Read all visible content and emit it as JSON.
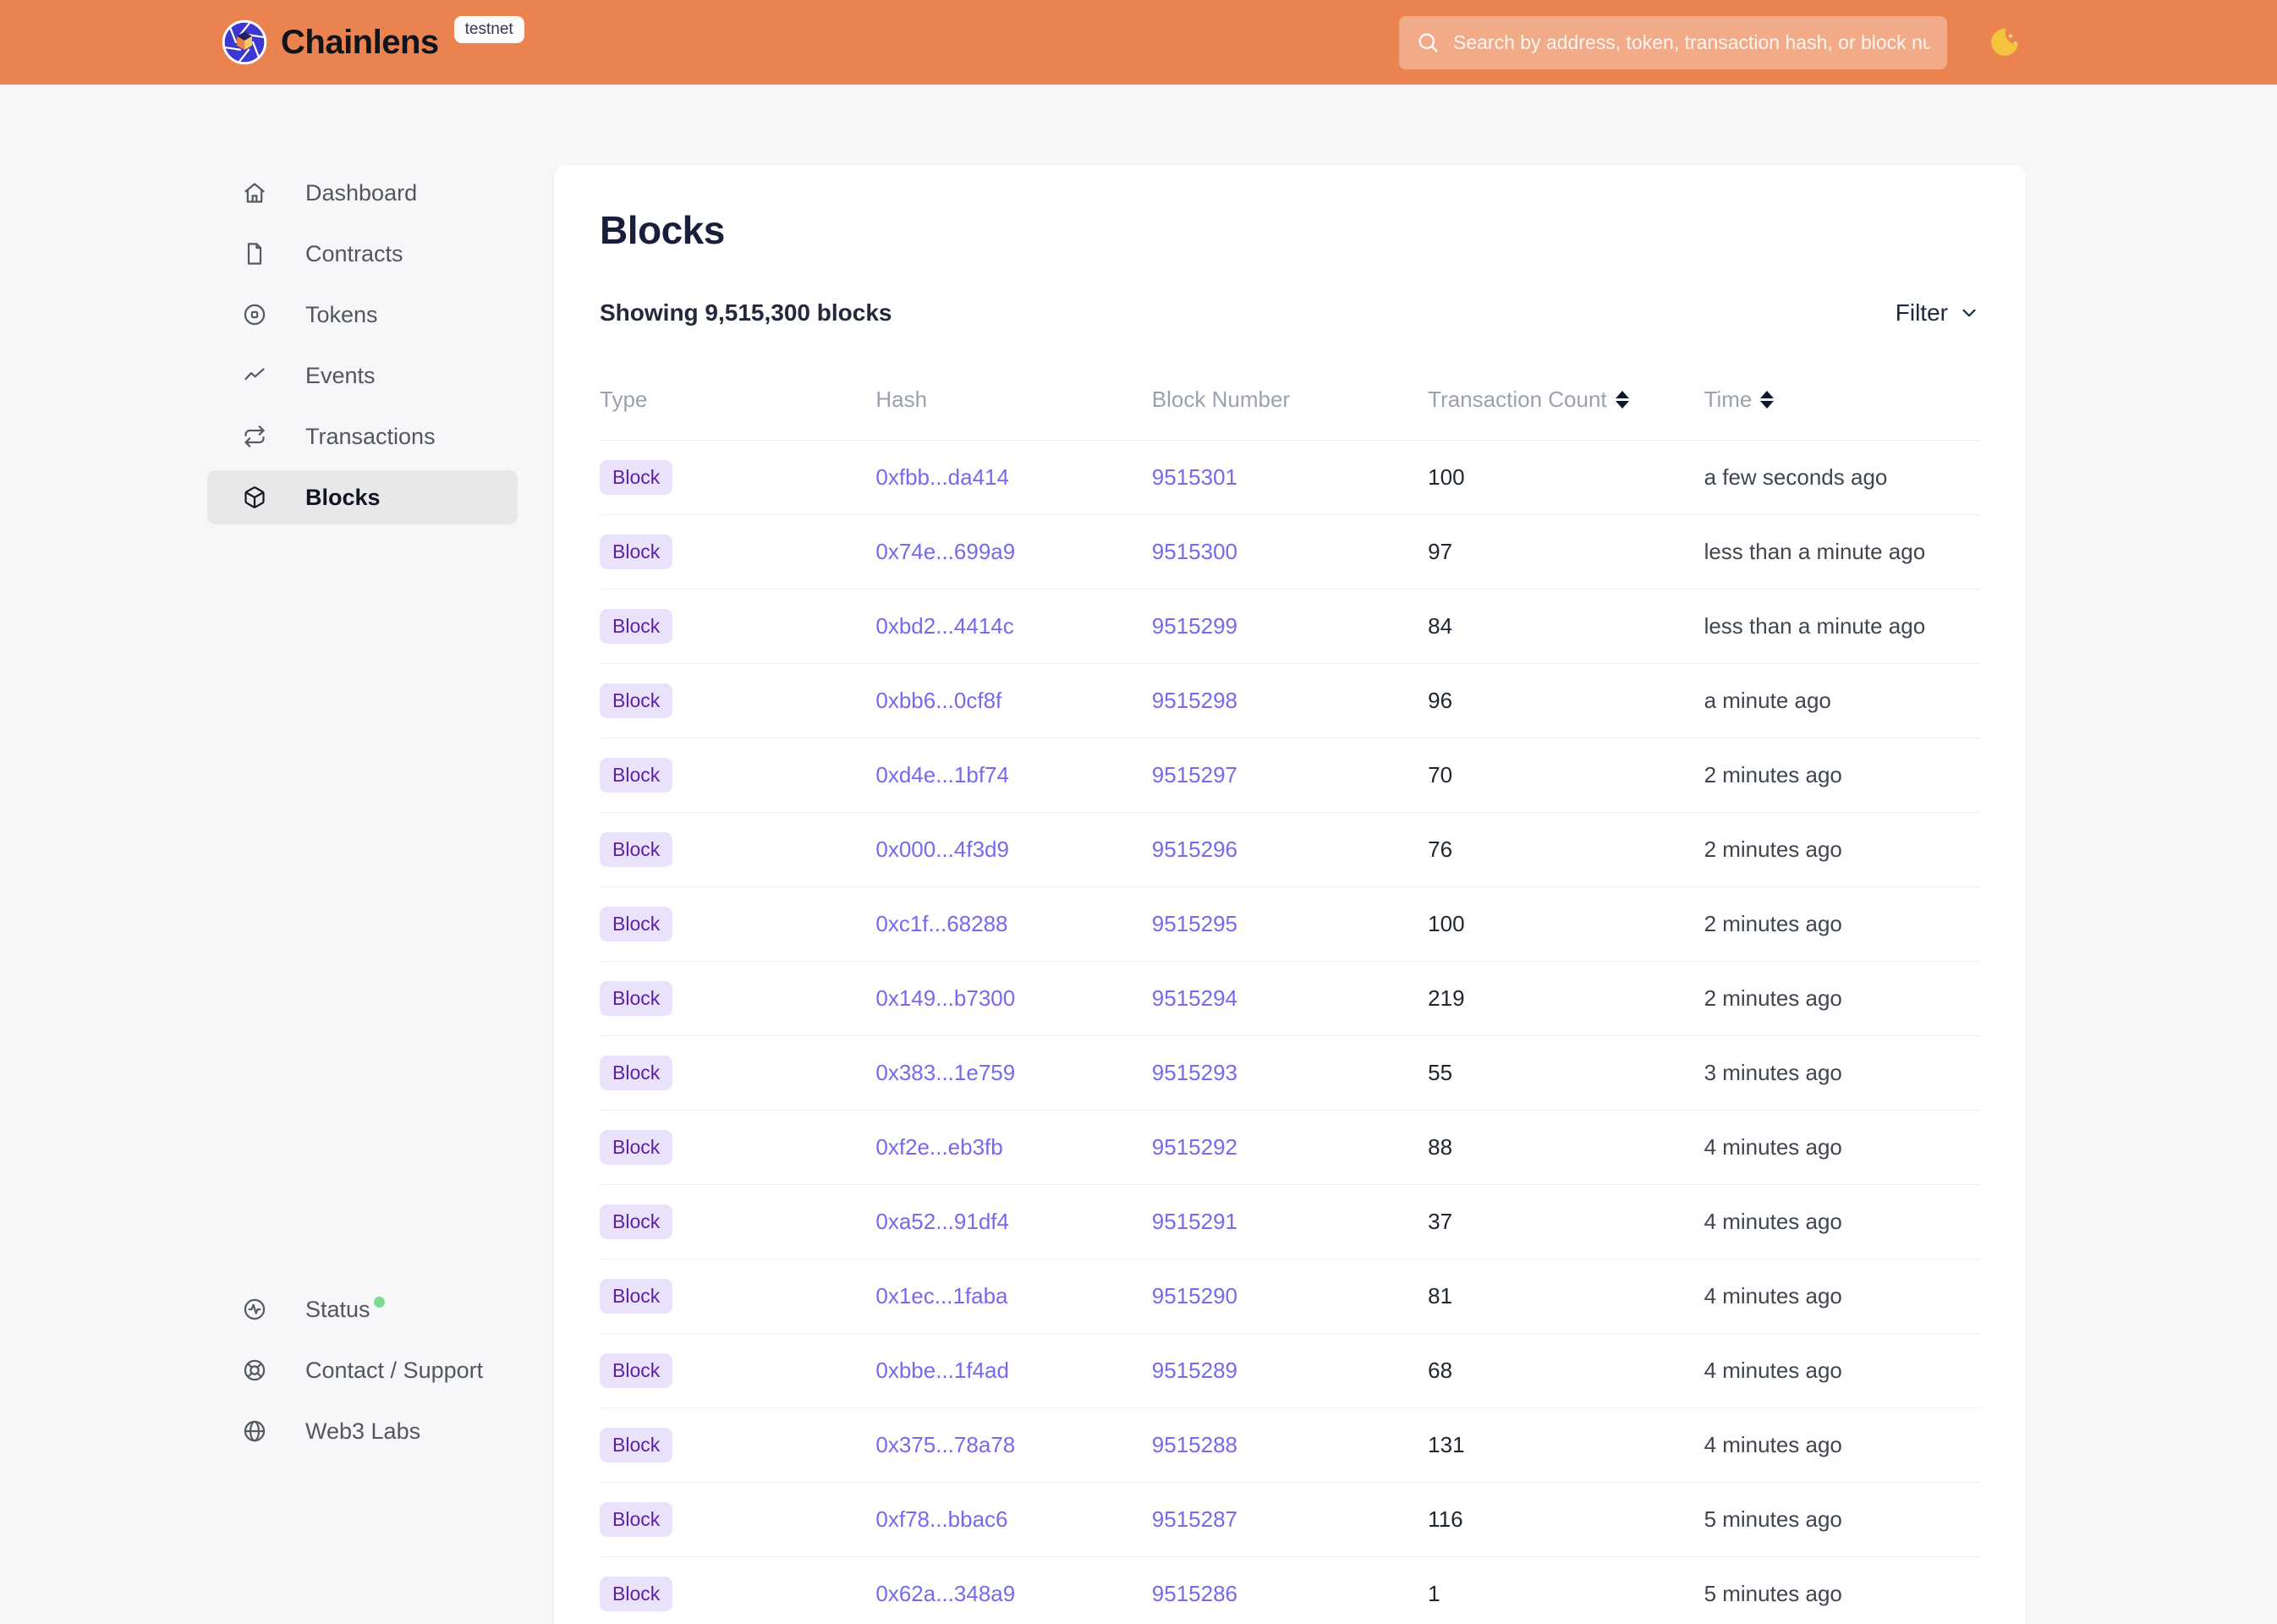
{
  "header": {
    "brand": "Chainlens",
    "network_badge": "testnet",
    "search_placeholder": "Search by address, token, transaction hash, or block number",
    "theme_icon": "moon-icon"
  },
  "sidebar": {
    "items": [
      {
        "key": "dashboard",
        "label": "Dashboard",
        "icon": "home-icon",
        "active": false
      },
      {
        "key": "contracts",
        "label": "Contracts",
        "icon": "file-icon",
        "active": false
      },
      {
        "key": "tokens",
        "label": "Tokens",
        "icon": "token-icon",
        "active": false
      },
      {
        "key": "events",
        "label": "Events",
        "icon": "activity-icon",
        "active": false
      },
      {
        "key": "transactions",
        "label": "Transactions",
        "icon": "repeat-icon",
        "active": false
      },
      {
        "key": "blocks",
        "label": "Blocks",
        "icon": "cube-icon",
        "active": true
      }
    ],
    "footer_items": [
      {
        "key": "status",
        "label": "Status",
        "icon": "pulse-circle-icon",
        "status_dot": true
      },
      {
        "key": "contact",
        "label": "Contact / Support",
        "icon": "lifebuoy-icon",
        "status_dot": false
      },
      {
        "key": "web3labs",
        "label": "Web3 Labs",
        "icon": "globe-icon",
        "status_dot": false
      }
    ]
  },
  "main": {
    "title": "Blocks",
    "summary": "Showing 9,515,300 blocks",
    "filter_label": "Filter",
    "table": {
      "columns": [
        {
          "label": "Type",
          "sortable": false
        },
        {
          "label": "Hash",
          "sortable": false
        },
        {
          "label": "Block Number",
          "sortable": false
        },
        {
          "label": "Transaction Count",
          "sortable": true
        },
        {
          "label": "Time",
          "sortable": true
        }
      ],
      "rows": [
        {
          "type": "Block",
          "hash": "0xfbb...da414",
          "block_number": "9515301",
          "transaction_count": "100",
          "time": "a few seconds ago"
        },
        {
          "type": "Block",
          "hash": "0x74e...699a9",
          "block_number": "9515300",
          "transaction_count": "97",
          "time": "less than a minute ago"
        },
        {
          "type": "Block",
          "hash": "0xbd2...4414c",
          "block_number": "9515299",
          "transaction_count": "84",
          "time": "less than a minute ago"
        },
        {
          "type": "Block",
          "hash": "0xbb6...0cf8f",
          "block_number": "9515298",
          "transaction_count": "96",
          "time": "a minute ago"
        },
        {
          "type": "Block",
          "hash": "0xd4e...1bf74",
          "block_number": "9515297",
          "transaction_count": "70",
          "time": "2 minutes ago"
        },
        {
          "type": "Block",
          "hash": "0x000...4f3d9",
          "block_number": "9515296",
          "transaction_count": "76",
          "time": "2 minutes ago"
        },
        {
          "type": "Block",
          "hash": "0xc1f...68288",
          "block_number": "9515295",
          "transaction_count": "100",
          "time": "2 minutes ago"
        },
        {
          "type": "Block",
          "hash": "0x149...b7300",
          "block_number": "9515294",
          "transaction_count": "219",
          "time": "2 minutes ago"
        },
        {
          "type": "Block",
          "hash": "0x383...1e759",
          "block_number": "9515293",
          "transaction_count": "55",
          "time": "3 minutes ago"
        },
        {
          "type": "Block",
          "hash": "0xf2e...eb3fb",
          "block_number": "9515292",
          "transaction_count": "88",
          "time": "4 minutes ago"
        },
        {
          "type": "Block",
          "hash": "0xa52...91df4",
          "block_number": "9515291",
          "transaction_count": "37",
          "time": "4 minutes ago"
        },
        {
          "type": "Block",
          "hash": "0x1ec...1faba",
          "block_number": "9515290",
          "transaction_count": "81",
          "time": "4 minutes ago"
        },
        {
          "type": "Block",
          "hash": "0xbbe...1f4ad",
          "block_number": "9515289",
          "transaction_count": "68",
          "time": "4 minutes ago"
        },
        {
          "type": "Block",
          "hash": "0x375...78a78",
          "block_number": "9515288",
          "transaction_count": "131",
          "time": "4 minutes ago"
        },
        {
          "type": "Block",
          "hash": "0xf78...bbac6",
          "block_number": "9515287",
          "transaction_count": "116",
          "time": "5 minutes ago"
        },
        {
          "type": "Block",
          "hash": "0x62a...348a9",
          "block_number": "9515286",
          "transaction_count": "1",
          "time": "5 minutes ago"
        }
      ]
    }
  },
  "colors": {
    "header_bg": "#EA8350",
    "page_bg": "#F7F7F9",
    "card_bg": "#FFFFFF",
    "accent_link": "#756AEF",
    "badge_bg": "#EAE1FB",
    "badge_text": "#5A21A8",
    "active_nav_bg": "#E8E8EA",
    "status_dot": "#7ED98F",
    "title_text": "#191E3B"
  }
}
